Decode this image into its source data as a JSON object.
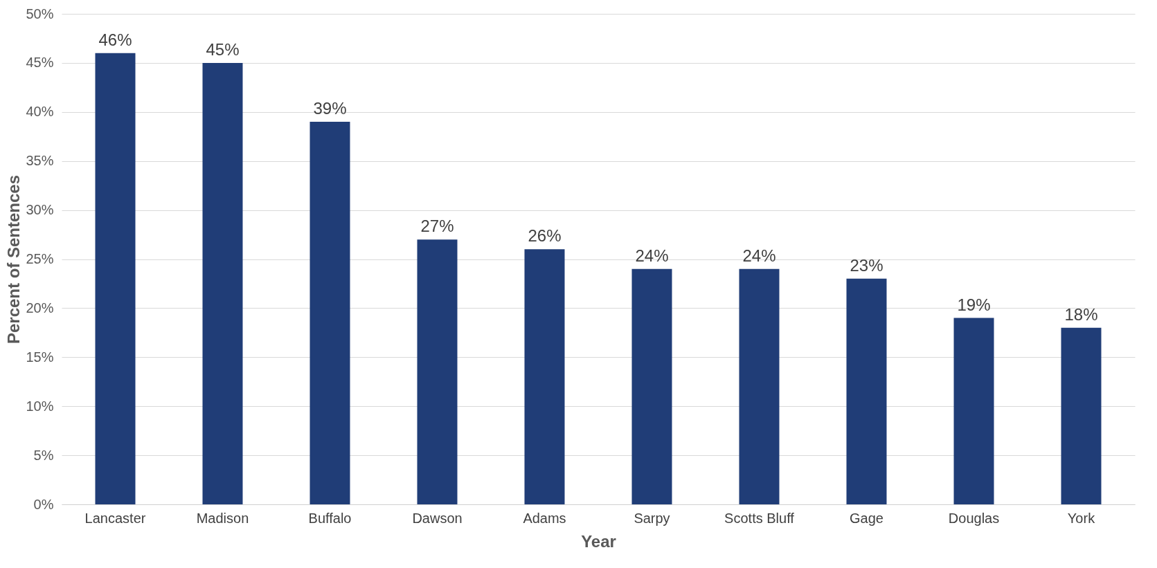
{
  "chart_data": {
    "type": "bar",
    "xlabel": "Year",
    "ylabel": "Percent of Sentences",
    "categories": [
      "Lancaster",
      "Madison",
      "Buffalo",
      "Dawson",
      "Adams",
      "Sarpy",
      "Scotts Bluff",
      "Gage",
      "Douglas",
      "York"
    ],
    "series": [
      {
        "color": "#203d77",
        "values": [
          46,
          45,
          39,
          27,
          26,
          24,
          24,
          23,
          19,
          18
        ],
        "value_labels": [
          "46%",
          "45%",
          "39%",
          "27%",
          "26%",
          "24%",
          "24%",
          "23%",
          "19%",
          "18%"
        ]
      }
    ],
    "ylim": [
      0,
      50
    ],
    "yticks": [
      {
        "value": 0,
        "label": "0%"
      },
      {
        "value": 5,
        "label": "5%"
      },
      {
        "value": 10,
        "label": "10%"
      },
      {
        "value": 15,
        "label": "15%"
      },
      {
        "value": 20,
        "label": "20%"
      },
      {
        "value": 25,
        "label": "25%"
      },
      {
        "value": 30,
        "label": "30%"
      },
      {
        "value": 35,
        "label": "35%"
      },
      {
        "value": 40,
        "label": "40%"
      },
      {
        "value": 45,
        "label": "45%"
      },
      {
        "value": 50,
        "label": "50%"
      }
    ],
    "grid": "y"
  }
}
